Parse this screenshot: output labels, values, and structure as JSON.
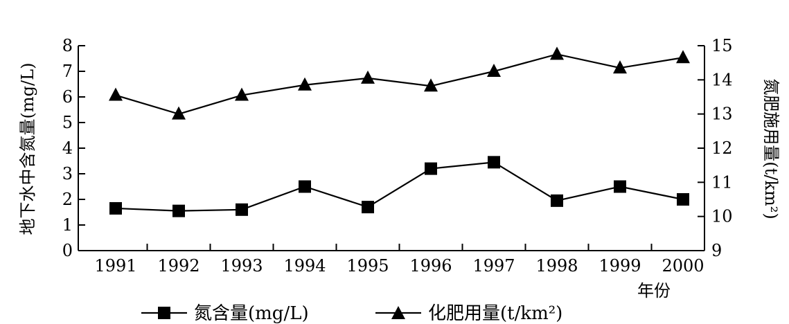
{
  "chart_data": {
    "type": "line",
    "title": "",
    "x": [
      "1991",
      "1992",
      "1993",
      "1994",
      "1995",
      "1996",
      "1997",
      "1998",
      "1999",
      "2000"
    ],
    "xlabel": "年份",
    "y_left": {
      "label": "地下水中含氮量(mg/L)",
      "range": [
        0,
        8
      ],
      "ticks": [
        "0",
        "1",
        "2",
        "3",
        "4",
        "5",
        "6",
        "7",
        "8"
      ]
    },
    "y_right": {
      "label": "氮肥施用量(t/km²)",
      "range": [
        9,
        15
      ],
      "ticks": [
        "9",
        "10",
        "11",
        "12",
        "13",
        "14",
        "15"
      ]
    },
    "series": [
      {
        "name": "氮含量(mg/L)",
        "axis": "left",
        "marker": "square",
        "values": [
          1.65,
          1.55,
          1.6,
          2.5,
          1.7,
          3.2,
          3.45,
          1.95,
          2.5,
          2.0
        ]
      },
      {
        "name": "化肥用量(t/km²)",
        "axis": "right",
        "marker": "triangle",
        "values": [
          13.55,
          13.0,
          13.55,
          13.85,
          14.05,
          13.82,
          14.25,
          14.75,
          14.35,
          14.65
        ]
      }
    ],
    "grid": false,
    "legend": "bottom"
  }
}
